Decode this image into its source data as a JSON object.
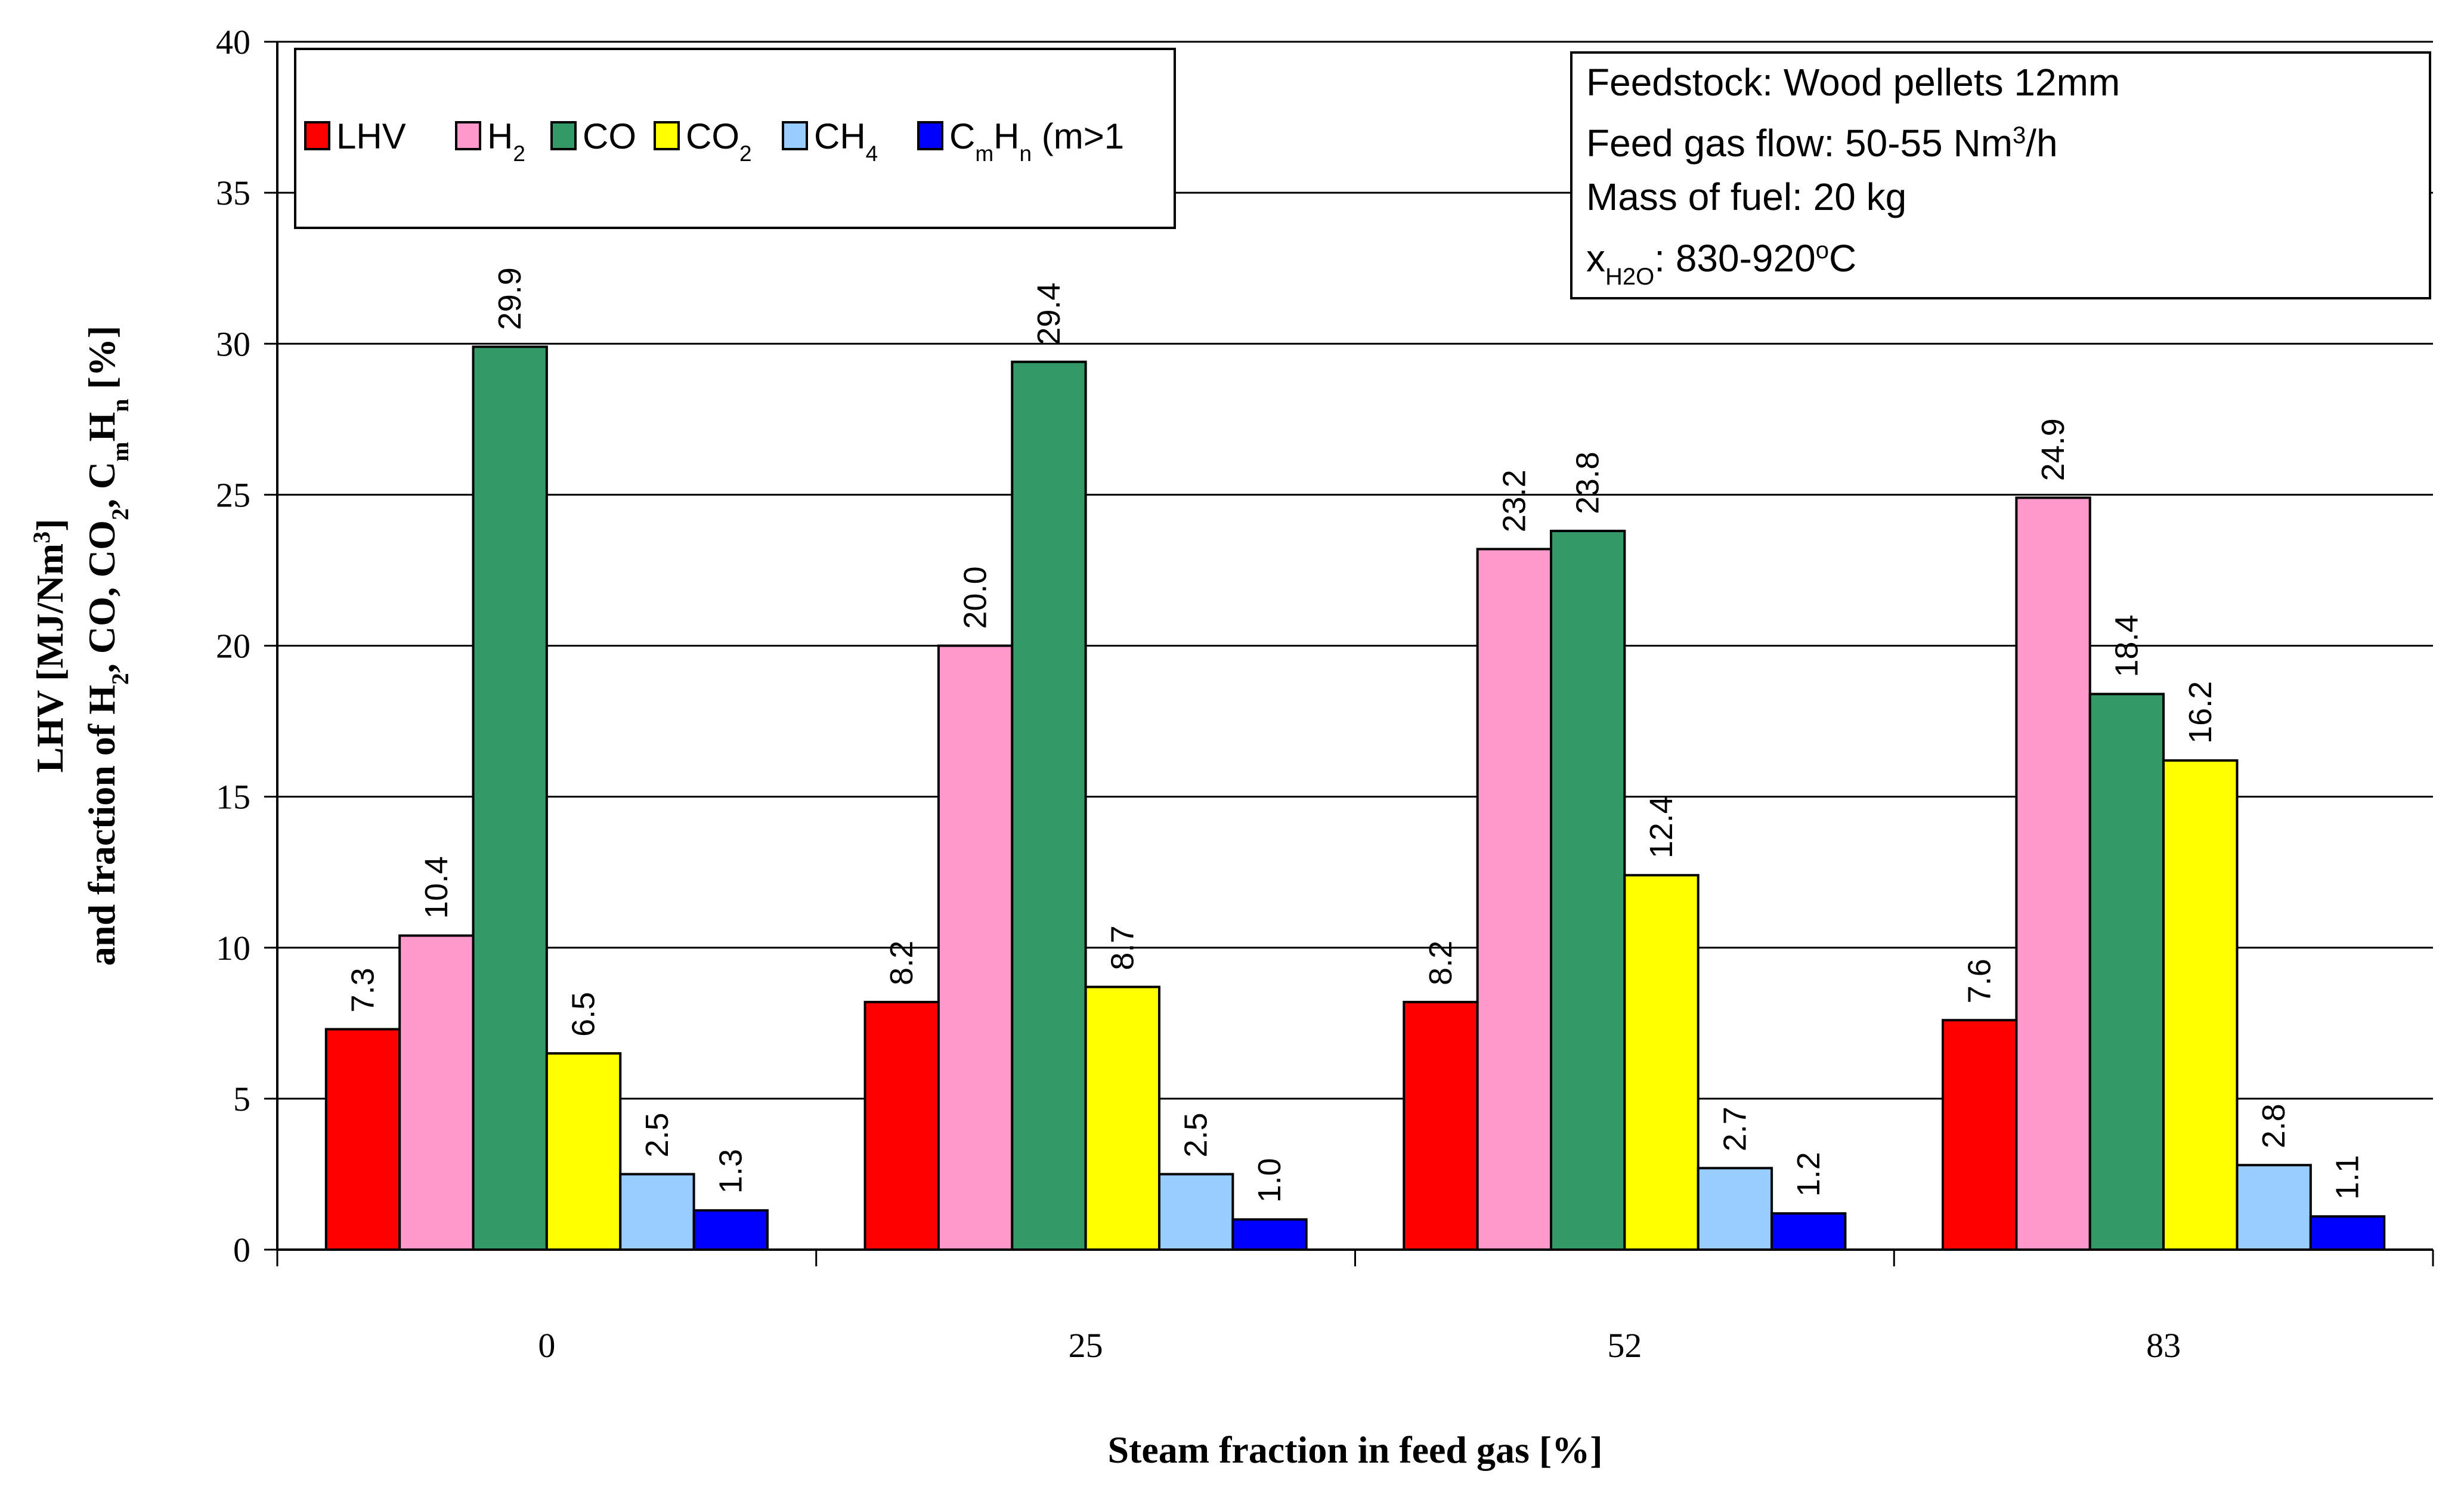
{
  "chart_data": {
    "type": "bar",
    "categories": [
      "0",
      "25",
      "52",
      "83"
    ],
    "series": [
      {
        "name": "LHV",
        "label_parts": [
          [
            "LHV",
            ""
          ]
        ],
        "color": "#ff0000",
        "values": [
          7.3,
          8.2,
          8.2,
          7.6
        ],
        "labels": [
          "7.3",
          "8.2",
          "8.2",
          "7.6"
        ]
      },
      {
        "name": "H2",
        "label_parts": [
          [
            "H",
            ""
          ],
          [
            "2",
            "sub"
          ]
        ],
        "color": "#ff99cc",
        "values": [
          10.4,
          20.0,
          23.2,
          24.9
        ],
        "labels": [
          "10.4",
          "20.0",
          "23.2",
          "24.9"
        ]
      },
      {
        "name": "CO",
        "label_parts": [
          [
            "CO",
            ""
          ]
        ],
        "color": "#339966",
        "values": [
          29.9,
          29.4,
          23.8,
          18.4
        ],
        "labels": [
          "29.9",
          "29.4",
          "23.8",
          "18.4"
        ]
      },
      {
        "name": "CO2",
        "label_parts": [
          [
            "CO",
            ""
          ],
          [
            "2",
            "sub"
          ]
        ],
        "color": "#ffff00",
        "values": [
          6.5,
          8.7,
          12.4,
          16.2
        ],
        "labels": [
          "6.5",
          "8.7",
          "12.4",
          "16.2"
        ]
      },
      {
        "name": "CH4",
        "label_parts": [
          [
            "CH",
            ""
          ],
          [
            "4",
            "sub"
          ]
        ],
        "color": "#99ccff",
        "values": [
          2.5,
          2.5,
          2.7,
          2.8
        ],
        "labels": [
          "2.5",
          "2.5",
          "2.7",
          "2.8"
        ]
      },
      {
        "name": "CmHn (m>1",
        "label_parts": [
          [
            "C",
            ""
          ],
          [
            "m",
            "sub"
          ],
          [
            "H",
            ""
          ],
          [
            "n",
            "sub"
          ],
          [
            " (m>1",
            ""
          ]
        ],
        "color": "#0000ff",
        "values": [
          1.3,
          1.0,
          1.2,
          1.1
        ],
        "labels": [
          "1.3",
          "1.0",
          "1.2",
          "1.1"
        ]
      }
    ],
    "ylim": [
      0,
      40
    ],
    "yticks": [
      0,
      5,
      10,
      15,
      20,
      25,
      30,
      35,
      40
    ],
    "grid": true,
    "legend": "top-left",
    "xlabel": "Steam fraction in feed gas [%]",
    "ylabel_line1_parts": [
      [
        "LHV [MJ/Nm",
        ""
      ],
      [
        "3",
        "sup"
      ],
      [
        "]",
        ""
      ]
    ],
    "ylabel_line2_parts": [
      [
        "and fraction of H",
        ""
      ],
      [
        "2",
        "sub"
      ],
      [
        ", CO, CO",
        ""
      ],
      [
        "2",
        "sub"
      ],
      [
        ", C",
        ""
      ],
      [
        "m",
        "sub"
      ],
      [
        "H",
        ""
      ],
      [
        "n",
        "sub"
      ],
      [
        " [%]",
        ""
      ]
    ],
    "annotation_box": [
      [
        [
          "Feedstock: Wood pellets 12mm",
          ""
        ]
      ],
      [
        [
          "Feed gas flow: 50-55 Nm",
          ""
        ],
        [
          "3",
          "sup"
        ],
        [
          "/h",
          ""
        ]
      ],
      [
        [
          "Mass of fuel: 20 kg",
          ""
        ]
      ],
      [
        [
          "x",
          ""
        ],
        [
          "H2O",
          "sub"
        ],
        [
          ": 830-920",
          ""
        ],
        [
          "o",
          "sup"
        ],
        [
          "C",
          ""
        ]
      ]
    ]
  }
}
